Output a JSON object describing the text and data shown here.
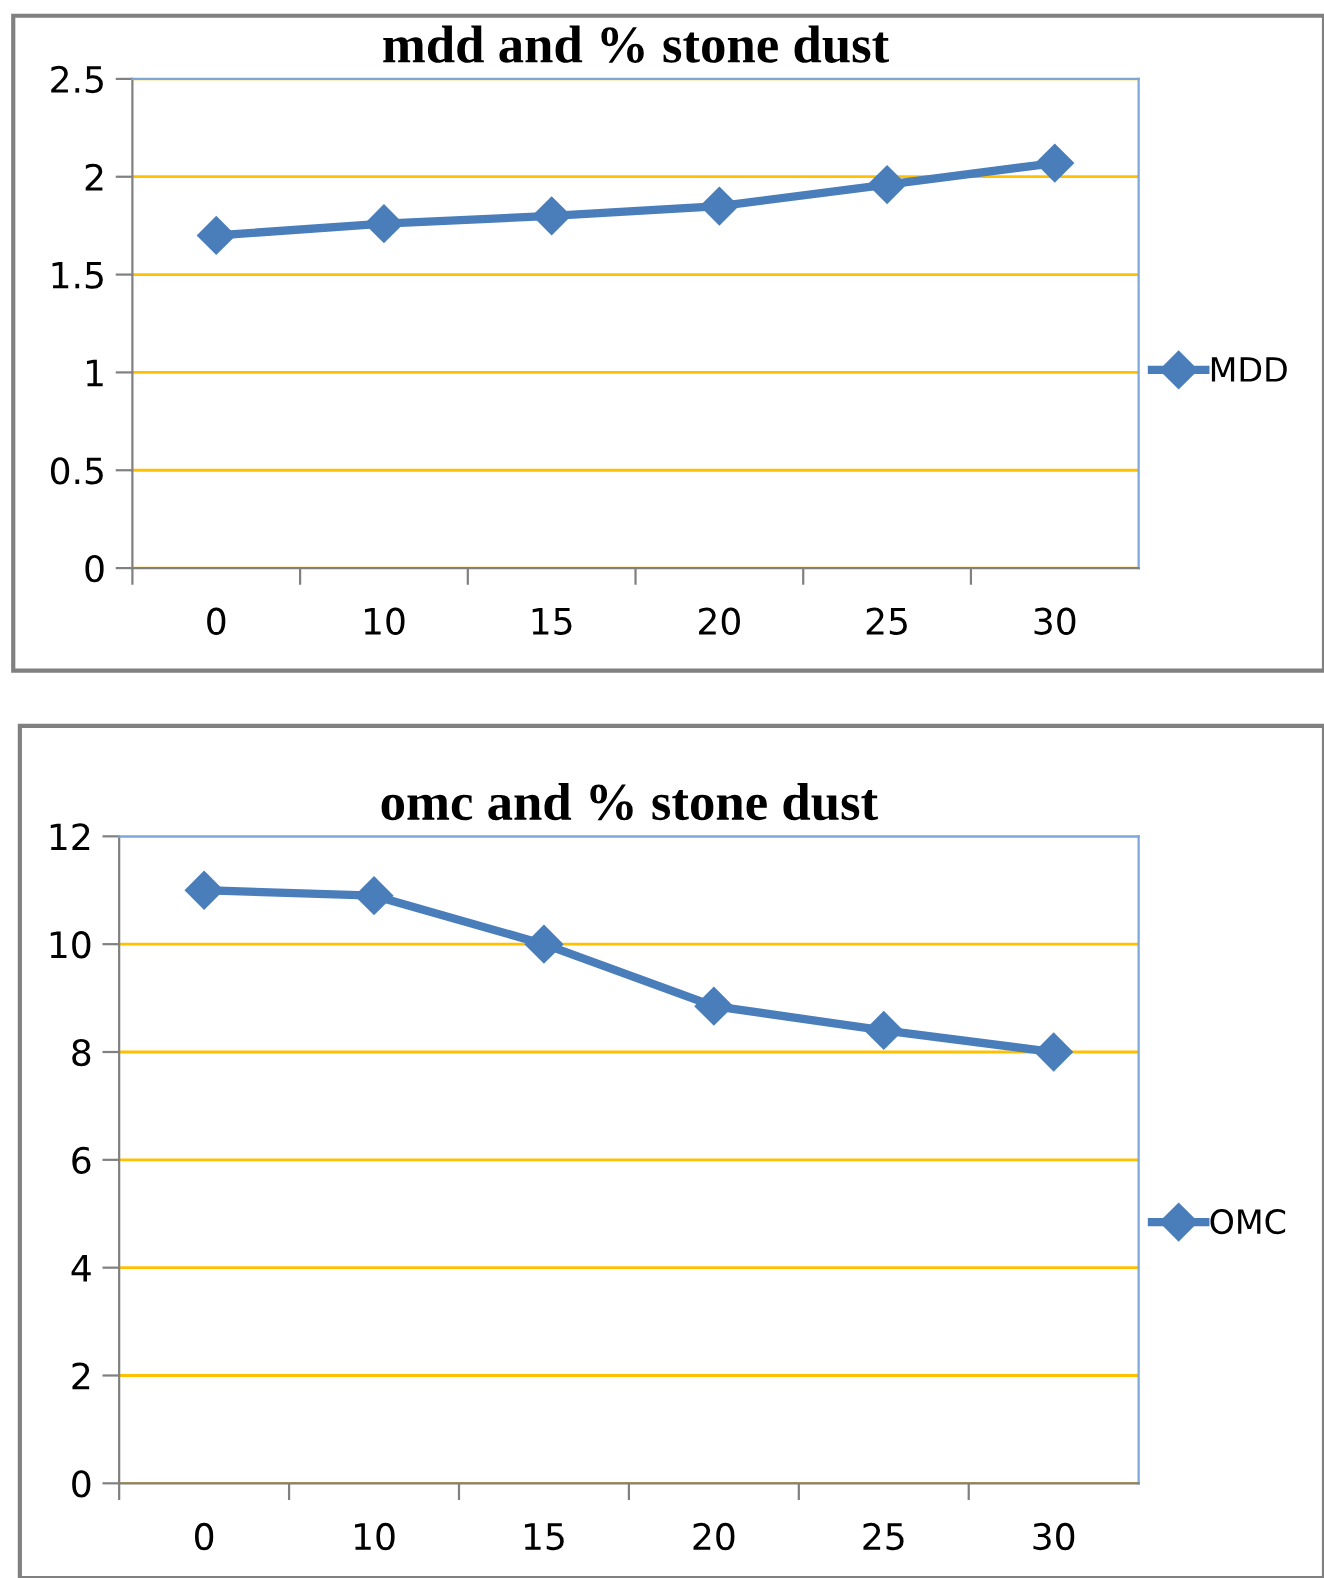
{
  "chart_data": [
    {
      "type": "line",
      "title": "mdd and % stone dust",
      "categories": [
        "0",
        "10",
        "15",
        "20",
        "25",
        "30"
      ],
      "series": [
        {
          "name": "MDD",
          "color": "#4a7ebb",
          "values": [
            1.7,
            1.76,
            1.8,
            1.85,
            1.96,
            2.07
          ]
        }
      ],
      "ylim": [
        0,
        2.5
      ],
      "yticks": [
        0,
        0.5,
        1,
        1.5,
        2,
        2.5
      ],
      "grid": "y",
      "legend": "right",
      "marker": "diamond",
      "line_style": "solid"
    },
    {
      "type": "line",
      "title": "omc and % stone dust",
      "categories": [
        "0",
        "10",
        "15",
        "20",
        "25",
        "30"
      ],
      "series": [
        {
          "name": "OMC",
          "color": "#4a7ebb",
          "values": [
            11.0,
            10.9,
            10.0,
            8.85,
            8.4,
            8.0
          ]
        }
      ],
      "ylim": [
        0,
        12
      ],
      "yticks": [
        0,
        2,
        4,
        6,
        8,
        10,
        12
      ],
      "grid": "y",
      "legend": "right",
      "marker": "diamond",
      "line_style": "solid"
    }
  ]
}
